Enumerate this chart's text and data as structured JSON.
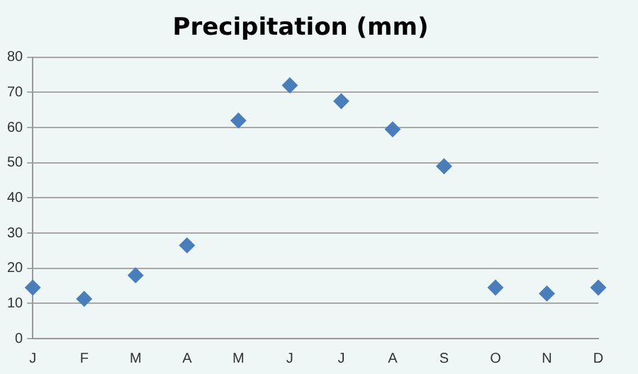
{
  "chart_data": {
    "type": "scatter",
    "title": "Precipitation (mm)",
    "categories": [
      "J",
      "F",
      "M",
      "A",
      "M",
      "J",
      "J",
      "A",
      "S",
      "O",
      "N",
      "D"
    ],
    "series": [
      {
        "color": "#4a7ebb",
        "values": [
          14.5,
          11.3,
          18,
          26.5,
          62,
          72,
          67.5,
          59.5,
          49,
          14.5,
          12.8,
          14.5
        ]
      }
    ],
    "ylim": [
      0,
      80
    ],
    "yticks": [
      0,
      10,
      20,
      30,
      40,
      50,
      60,
      70,
      80
    ],
    "grid": "y",
    "legend": false,
    "marker": "diamond"
  }
}
